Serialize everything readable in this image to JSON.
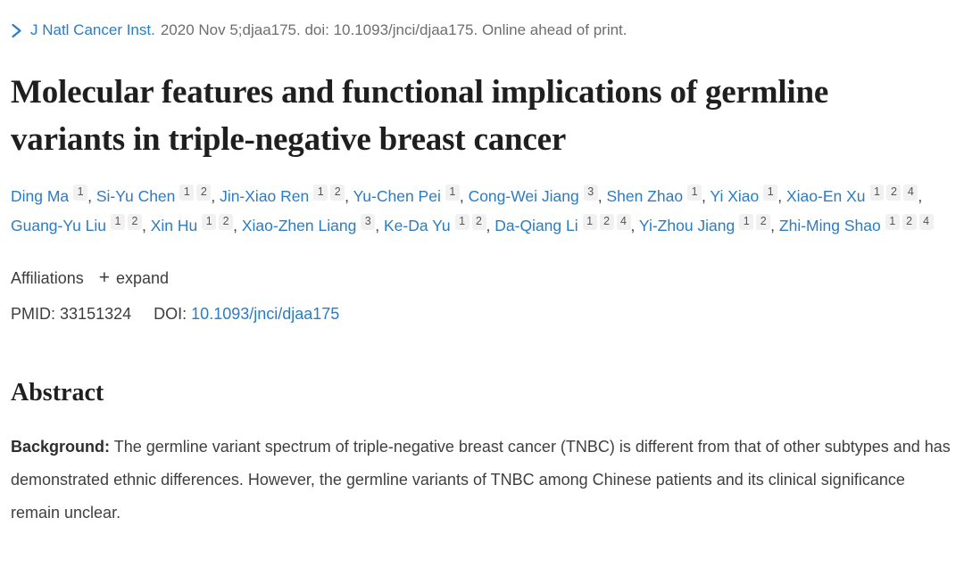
{
  "colors": {
    "link_blue": "#2b7cc2",
    "muted_gray": "#6e6e6e",
    "body_text": "#3f3f3f",
    "title_text": "#1f1f1f",
    "badge_bg": "#f1f1f1",
    "badge_text": "#555555"
  },
  "citation": {
    "chevron_icon": "chevron-right",
    "journal": "J Natl Cancer Inst.",
    "rest": "2020 Nov 5;djaa175. doi: 10.1093/jnci/djaa175. Online ahead of print."
  },
  "title": "Molecular features and functional implications of germline variants in triple-negative breast cancer",
  "authors": [
    {
      "name": "Ding Ma",
      "sups": [
        "1"
      ]
    },
    {
      "name": "Si-Yu Chen",
      "sups": [
        "1",
        "2"
      ]
    },
    {
      "name": "Jin-Xiao Ren",
      "sups": [
        "1",
        "2"
      ]
    },
    {
      "name": "Yu-Chen Pei",
      "sups": [
        "1"
      ]
    },
    {
      "name": "Cong-Wei Jiang",
      "sups": [
        "3"
      ]
    },
    {
      "name": "Shen Zhao",
      "sups": [
        "1"
      ]
    },
    {
      "name": "Yi Xiao",
      "sups": [
        "1"
      ]
    },
    {
      "name": "Xiao-En Xu",
      "sups": [
        "1",
        "2",
        "4"
      ]
    },
    {
      "name": "Guang-Yu Liu",
      "sups": [
        "1",
        "2"
      ]
    },
    {
      "name": "Xin Hu",
      "sups": [
        "1",
        "2"
      ]
    },
    {
      "name": "Xiao-Zhen Liang",
      "sups": [
        "3"
      ]
    },
    {
      "name": "Ke-Da Yu",
      "sups": [
        "1",
        "2"
      ]
    },
    {
      "name": "Da-Qiang Li",
      "sups": [
        "1",
        "2",
        "4"
      ]
    },
    {
      "name": "Yi-Zhou Jiang",
      "sups": [
        "1",
        "2"
      ]
    },
    {
      "name": "Zhi-Ming Shao",
      "sups": [
        "1",
        "2",
        "4"
      ]
    }
  ],
  "affiliations": {
    "label": "Affiliations",
    "expand_icon": "+",
    "expand_label": "expand"
  },
  "ids": {
    "pmid_label": "PMID:",
    "pmid_value": "33151324",
    "doi_label": "DOI:",
    "doi_value": "10.1093/jnci/djaa175"
  },
  "abstract": {
    "heading": "Abstract",
    "background_label": "Background:",
    "background_text": "The germline variant spectrum of triple-negative breast cancer (TNBC) is different from that of other subtypes and has demonstrated ethnic differences. However, the germline variants of TNBC among Chinese patients and its clinical significance remain unclear."
  }
}
